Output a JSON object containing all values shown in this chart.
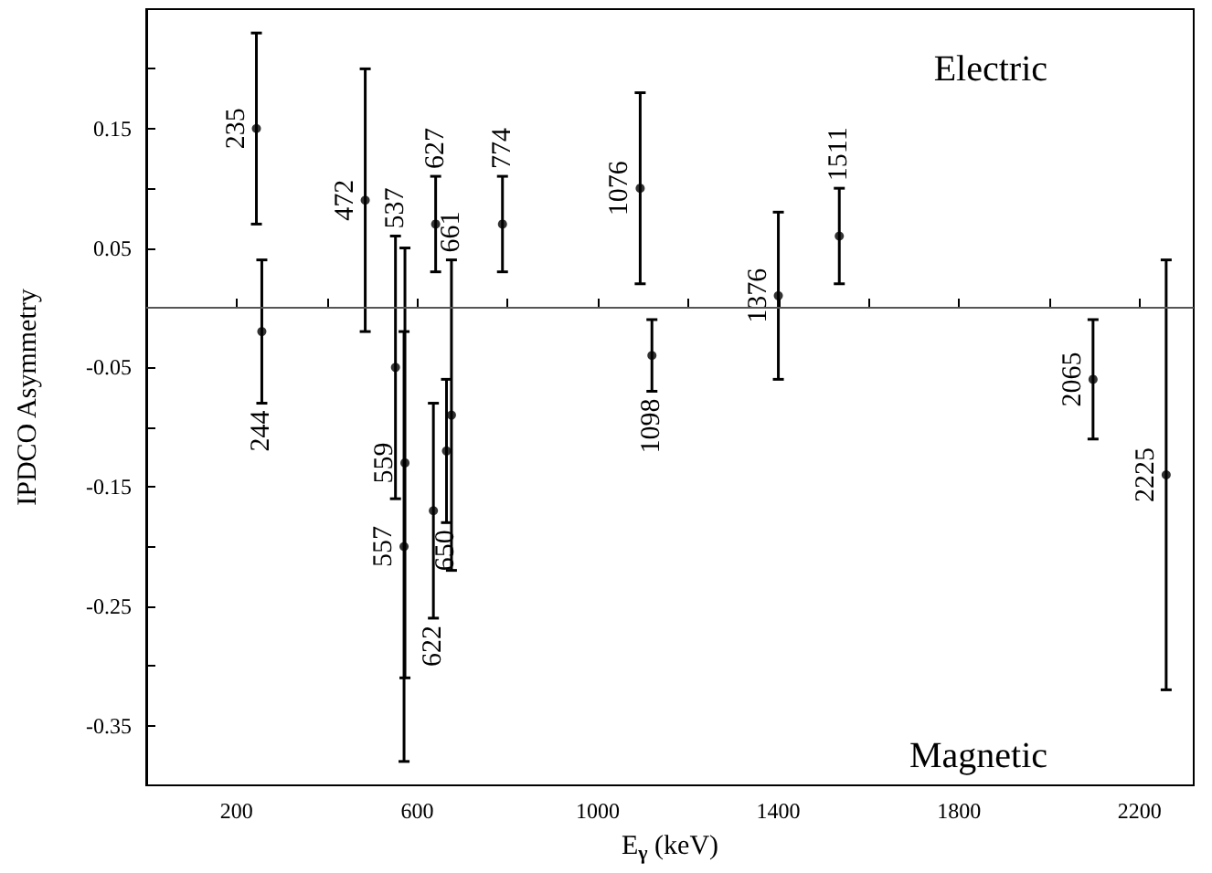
{
  "chart_data": {
    "type": "scatter",
    "xlabel": "E$_{γ}$ (keV)",
    "ylabel": "IPDCO Asymmetry",
    "marker": "circle",
    "xlim": [
      0,
      2320
    ],
    "xticks": [
      200,
      {
        "value": 400,
        "label": null
      },
      600,
      {
        "value": 800,
        "label": null
      },
      1000,
      {
        "value": 1200,
        "label": null
      },
      1400,
      {
        "value": 1600,
        "label": null
      },
      1800,
      {
        "value": 2000,
        "label": null
      },
      2200
    ],
    "ylim": [
      -0.4,
      0.25
    ],
    "yticks": [
      -0.35,
      {
        "value": -0.3,
        "label": null
      },
      -0.25,
      {
        "value": -0.2,
        "label": null
      },
      -0.15,
      {
        "value": -0.1,
        "label": null
      },
      -0.05,
      {
        "value": 0,
        "label": null
      },
      0.05,
      {
        "value": 0.1,
        "label": null
      },
      0.15,
      {
        "value": 0.2,
        "label": null
      }
    ],
    "series": [
      {
        "color": "#000000",
        "x": [
          244,
          256,
          485,
          552,
          573,
          571,
          641,
          636,
          665,
          676,
          789,
          1094,
          1120,
          1400,
          1535,
          2097,
          2259
        ],
        "values": [
          0.15,
          -0.02,
          0.09,
          -0.05,
          -0.13,
          -0.2,
          0.07,
          -0.17,
          -0.12,
          -0.09,
          0.07,
          0.1,
          -0.04,
          0.01,
          0.06,
          -0.06,
          -0.14
        ],
        "errors": [
          [
            0.07,
            0.23
          ],
          [
            -0.08,
            0.04
          ],
          [
            -0.02,
            0.2
          ],
          [
            -0.16,
            0.06
          ],
          [
            -0.31,
            0.05
          ],
          [
            -0.38,
            -0.02
          ],
          [
            0.03,
            0.11
          ],
          [
            -0.26,
            -0.08
          ],
          [
            -0.18,
            -0.06
          ],
          [
            -0.22,
            0.04
          ],
          [
            0.03,
            0.11
          ],
          [
            0.02,
            0.18
          ],
          [
            -0.07,
            -0.01
          ],
          [
            -0.06,
            0.08
          ],
          [
            0.02,
            0.1
          ],
          [
            -0.11,
            -0.01
          ],
          [
            -0.32,
            0.04
          ]
        ]
      }
    ],
    "ref_lines": [
      {
        "axis": "y",
        "value": 0,
        "color": "#555555"
      }
    ],
    "annotations": [
      {
        "text": "235",
        "x": 244,
        "y": 0.15
      },
      {
        "text": "244",
        "x": 256,
        "y": -0.08
      },
      {
        "text": "472",
        "x": 485,
        "y": 0.09
      },
      {
        "text": "537",
        "x": 552,
        "y": 0.06
      },
      {
        "text": "559",
        "x": 573,
        "y": -0.13
      },
      {
        "text": "557",
        "x": 571,
        "y": -0.2
      },
      {
        "text": "627",
        "x": 641,
        "y": 0.11
      },
      {
        "text": "622",
        "x": 636,
        "y": -0.26
      },
      {
        "text": "650",
        "x": 665,
        "y": -0.18
      },
      {
        "text": "661",
        "x": 676,
        "y": 0.04
      },
      {
        "text": "774",
        "x": 789,
        "y": 0.11
      },
      {
        "text": "1076",
        "x": 1094,
        "y": 0.1
      },
      {
        "text": "1098",
        "x": 1120,
        "y": -0.07
      },
      {
        "text": "1376",
        "x": 1400,
        "y": 0.01
      },
      {
        "text": "1511",
        "x": 1535,
        "y": 0.1
      },
      {
        "text": "2065",
        "x": 2097,
        "y": -0.06
      },
      {
        "text": "2225",
        "x": 2259,
        "y": -0.14
      },
      "Electric",
      "Magnetic"
    ]
  }
}
